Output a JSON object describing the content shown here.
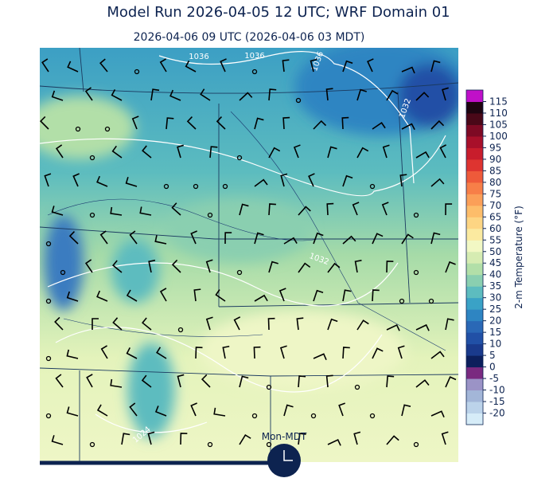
{
  "header": {
    "title": "Model Run 2026-04-05 12 UTC; WRF Domain 01",
    "subtitle": "2026-04-06 09 UTC  (2026-04-06 03 MDT)"
  },
  "map": {
    "contour_labels": [
      "1036",
      "1036",
      "1036",
      "1032",
      "1032",
      "1024"
    ]
  },
  "clock": {
    "label": "Mon-MDT"
  },
  "colorbar": {
    "label": "2-m Temperature (°F)",
    "lim": [
      -25,
      120
    ],
    "step": 5,
    "ticks": [
      -20,
      -15,
      -10,
      -5,
      0,
      5,
      10,
      15,
      20,
      25,
      30,
      35,
      40,
      45,
      50,
      55,
      60,
      65,
      70,
      75,
      80,
      85,
      90,
      95,
      100,
      105,
      110,
      115
    ],
    "colors": [
      "#d6ecf8",
      "#bcd3ea",
      "#a3b6d8",
      "#9b93c6",
      "#7a2a80",
      "#0c1f5c",
      "#1a3a8c",
      "#2150a6",
      "#2a68b6",
      "#2e85c2",
      "#3aa2c6",
      "#5dbcbf",
      "#8acfb0",
      "#b2dfa8",
      "#d6ecb2",
      "#f2f8c4",
      "#fbeaa0",
      "#fdd583",
      "#fdbd6a",
      "#fb9f58",
      "#f77f48",
      "#ee5a3a",
      "#de3430",
      "#c81d2c",
      "#a8102a",
      "#7e0a24",
      "#4a0818",
      "#1e0510",
      "#c010c8"
    ]
  }
}
